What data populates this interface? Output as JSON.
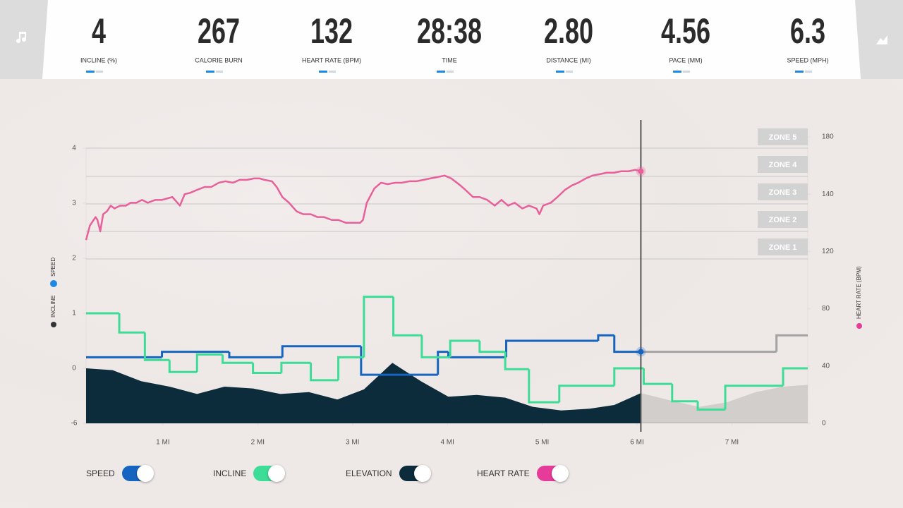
{
  "stats": [
    {
      "value": "4",
      "label": "INCLINE (%)"
    },
    {
      "value": "267",
      "label": "CALORIE BURN"
    },
    {
      "value": "132",
      "label": "HEART RATE (BPM)"
    },
    {
      "value": "28:38",
      "label": "TIME"
    },
    {
      "value": "2.80",
      "label": "DISTANCE (MI)"
    },
    {
      "value": "4.56",
      "label": "PACE (MM)"
    },
    {
      "value": "6.3",
      "label": "SPEED (MPH)"
    }
  ],
  "chart_data": {
    "type": "line",
    "y_axis_labels": [
      "INCLINE",
      "SPEED"
    ],
    "y2label": "HEART RATE (BPM)",
    "xlim": [
      0.19,
      7.8
    ],
    "xticks": [
      {
        "value": 1,
        "label": "1 MI"
      },
      {
        "value": 2,
        "label": "2 MI"
      },
      {
        "value": 3,
        "label": "3 MI"
      },
      {
        "value": 4,
        "label": "4 MI"
      },
      {
        "value": 5,
        "label": "5 MI"
      },
      {
        "value": 6,
        "label": "6 MI"
      },
      {
        "value": 7,
        "label": "7 MI"
      }
    ],
    "ylim": [
      -6,
      4
    ],
    "yticks": [
      -6,
      0,
      1,
      2,
      3,
      4
    ],
    "y2lim": [
      0,
      180
    ],
    "y2ticks": [
      0,
      40,
      80,
      120,
      140,
      180
    ],
    "zones": [
      "ZONE 5",
      "ZONE 4",
      "ZONE 3",
      "ZONE 2",
      "ZONE 1"
    ],
    "position": 6.04,
    "series": [
      {
        "name": "SPEED",
        "kind": "step",
        "color": "#1565c0",
        "x": [
          0.19,
          0.99,
          1.7,
          2.26,
          3.09,
          3.9,
          4.01,
          4.62,
          5.59,
          5.76
        ],
        "values": [
          0.2,
          0.3,
          0.2,
          0.4,
          -0.7,
          0.3,
          0.2,
          0.5,
          0.6,
          0.3
        ],
        "planned_color": "#a3a3a3",
        "planned_x": [
          6.04,
          7.47
        ],
        "planned_values": [
          0.3,
          0.6
        ]
      },
      {
        "name": "INCLINE",
        "kind": "step",
        "color": "#3ddc97",
        "x": [
          0.19,
          0.54,
          0.81,
          1.07,
          1.36,
          1.63,
          1.95,
          2.25,
          2.56,
          2.85,
          3.12,
          3.43,
          3.73,
          4.03,
          4.34,
          4.61,
          4.86,
          5.18,
          5.76,
          6.07,
          6.37,
          6.64,
          6.93,
          7.54
        ],
        "values": [
          1.0,
          0.65,
          0.15,
          -0.4,
          0.25,
          0.1,
          -0.5,
          0.1,
          -1.3,
          0.2,
          1.3,
          0.6,
          0.2,
          0.5,
          0.3,
          -0.1,
          -3.7,
          -1.9,
          0.0,
          -1.7,
          -3.6,
          -4.5,
          -1.9,
          0.0
        ]
      },
      {
        "name": "ELEVATION",
        "kind": "area",
        "color": "#0c2b3b",
        "future_color": "#cdc9c7",
        "x": [
          0.19,
          0.47,
          0.77,
          1.07,
          1.36,
          1.65,
          1.95,
          2.24,
          2.54,
          2.84,
          3.12,
          3.42,
          3.72,
          4.01,
          4.31,
          4.61,
          4.9,
          5.2,
          5.5,
          5.76,
          6.04,
          6.35,
          6.65,
          6.95,
          7.25,
          7.54,
          7.8
        ],
        "values": [
          0.0,
          -0.2,
          -1.4,
          -2.0,
          -2.8,
          -2.0,
          -2.2,
          -2.8,
          -2.6,
          -3.4,
          -2.3,
          0.1,
          -1.4,
          -3.1,
          -2.9,
          -3.2,
          -4.2,
          -4.6,
          -4.4,
          -4.0,
          -2.7,
          -3.5,
          -4.2,
          -3.7,
          -2.6,
          -2.0,
          -1.8
        ]
      },
      {
        "name": "HEART RATE",
        "kind": "line",
        "axis": "y2",
        "color": "#e8609a",
        "x": [
          0.19,
          0.23,
          0.29,
          0.31,
          0.34,
          0.37,
          0.41,
          0.45,
          0.49,
          0.55,
          0.61,
          0.66,
          0.72,
          0.78,
          0.84,
          0.92,
          0.99,
          1.1,
          1.18,
          1.23,
          1.29,
          1.36,
          1.44,
          1.51,
          1.59,
          1.66,
          1.74,
          1.81,
          1.89,
          1.96,
          2.02,
          2.07,
          2.15,
          2.2,
          2.26,
          2.33,
          2.41,
          2.48,
          2.56,
          2.63,
          2.7,
          2.78,
          2.85,
          2.93,
          3.0,
          3.08,
          3.11,
          3.15,
          3.23,
          3.3,
          3.37,
          3.45,
          3.52,
          3.6,
          3.67,
          3.75,
          3.82,
          3.9,
          3.97,
          4.04,
          4.12,
          4.19,
          4.27,
          4.34,
          4.42,
          4.5,
          4.57,
          4.64,
          4.71,
          4.79,
          4.86,
          4.94,
          4.97,
          5.01,
          5.09,
          5.16,
          5.24,
          5.31,
          5.38,
          5.46,
          5.53,
          5.61,
          5.68,
          5.76,
          5.83,
          5.91,
          5.98,
          6.04
        ],
        "values": [
          124,
          129,
          132,
          131,
          127,
          133,
          134,
          136,
          135,
          136,
          136,
          137,
          137,
          138,
          137,
          138,
          138,
          139,
          136,
          140,
          141,
          143,
          145,
          145,
          148,
          149,
          148,
          150,
          150,
          151,
          151,
          150,
          149,
          145,
          139,
          137,
          134,
          133,
          133,
          132,
          132,
          131,
          131,
          130,
          130,
          130,
          131,
          137,
          144,
          148,
          147,
          148,
          148,
          149,
          149,
          150,
          151,
          152,
          153,
          151,
          147,
          143,
          139,
          139,
          138,
          136,
          138,
          136,
          137,
          135,
          136,
          135,
          133,
          136,
          137,
          139,
          143,
          146,
          148,
          151,
          153,
          154,
          155,
          155,
          156,
          156,
          157,
          156
        ]
      }
    ]
  }
}
